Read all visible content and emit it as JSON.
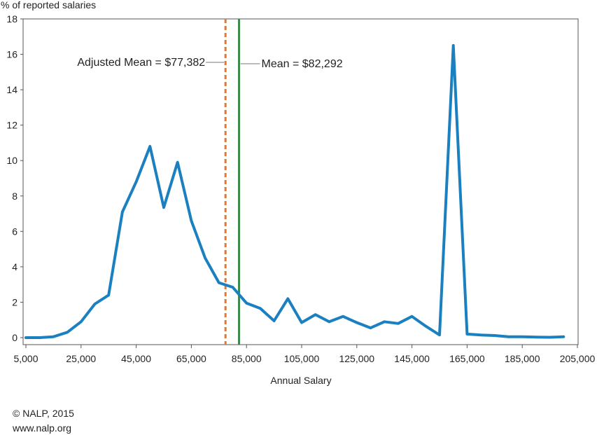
{
  "chart_data": {
    "type": "line",
    "ylabel": "% of reported salaries",
    "xlabel": "Annual Salary",
    "xlim": [
      5000,
      205000
    ],
    "ylim": [
      0,
      18
    ],
    "x_ticks": [
      5000,
      25000,
      45000,
      65000,
      85000,
      105000,
      125000,
      145000,
      165000,
      185000,
      205000
    ],
    "x_tick_labels": [
      "5,000",
      "25,000",
      "45,000",
      "65,000",
      "85,000",
      "105,000",
      "125,000",
      "145,000",
      "165,000",
      "185,000",
      "205,000"
    ],
    "y_ticks": [
      0,
      2,
      4,
      6,
      8,
      10,
      12,
      14,
      16,
      18
    ],
    "y_tick_labels": [
      "0",
      "2",
      "4",
      "6",
      "8",
      "10",
      "12",
      "14",
      "16",
      "18"
    ],
    "grid": false,
    "series": [
      {
        "color": "#1a80bf",
        "x": [
          5000,
          10000,
          15000,
          20000,
          25000,
          30000,
          35000,
          40000,
          45000,
          50000,
          55000,
          60000,
          65000,
          70000,
          75000,
          80000,
          85000,
          90000,
          95000,
          100000,
          105000,
          110000,
          115000,
          120000,
          125000,
          130000,
          135000,
          140000,
          145000,
          150000,
          155000,
          160000,
          165000,
          170000,
          175000,
          180000,
          185000,
          190000,
          195000,
          200000
        ],
        "y": [
          0.0,
          0.0,
          0.05,
          0.3,
          0.9,
          1.9,
          2.4,
          7.1,
          8.8,
          10.8,
          7.35,
          9.9,
          6.6,
          4.5,
          3.1,
          2.85,
          1.95,
          1.65,
          0.95,
          2.2,
          0.85,
          1.3,
          0.9,
          1.2,
          0.85,
          0.55,
          0.9,
          0.8,
          1.2,
          0.65,
          0.15,
          16.5,
          0.2,
          0.15,
          0.12,
          0.05,
          0.05,
          0.03,
          0.02,
          0.05
        ]
      }
    ],
    "reference_lines": [
      {
        "x": 77382,
        "label": "Adjusted Mean = $77,382",
        "color": "#e8772e",
        "style": "dashed"
      },
      {
        "x": 82292,
        "label": "Mean = $82,292",
        "color": "#3a8a4a",
        "style": "solid"
      }
    ]
  },
  "footer": {
    "copyright": "© NALP, 2015",
    "website": "www.nalp.org"
  }
}
